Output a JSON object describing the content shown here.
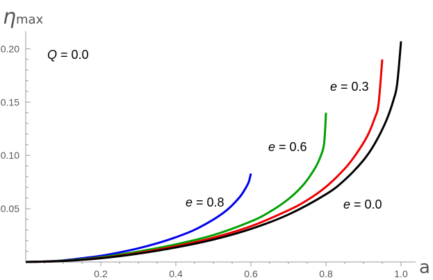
{
  "chart_data": {
    "type": "line",
    "title": "",
    "xlabel": "a",
    "ylabel": {
      "symbol": "η",
      "subscript": "max"
    },
    "xlim": [
      0.0,
      1.0
    ],
    "ylim": [
      0.0,
      0.21
    ],
    "x_ticks": [
      0.2,
      0.4,
      0.6,
      0.8,
      1.0
    ],
    "x_tick_labels": [
      "0.2",
      "0.4",
      "0.6",
      "0.8",
      "1.0"
    ],
    "y_ticks": [
      0.05,
      0.1,
      0.15,
      0.2
    ],
    "y_tick_labels": [
      "0.05",
      "0.10",
      "0.15",
      "0.20"
    ],
    "grid": false,
    "legend": "none",
    "annotations": [
      {
        "var": "Q",
        "eq": " = ",
        "val": "0.0"
      }
    ],
    "series": [
      {
        "label": {
          "var": "e",
          "eq": " = ",
          "val": "0.8"
        },
        "color": "#0000ee",
        "x": [
          0.0,
          0.05,
          0.1,
          0.15,
          0.2,
          0.25,
          0.3,
          0.35,
          0.4,
          0.45,
          0.5,
          0.53,
          0.55,
          0.57,
          0.58,
          0.59,
          0.595,
          0.6
        ],
        "y": [
          0.0,
          0.0005,
          0.0015,
          0.0035,
          0.0058,
          0.009,
          0.0128,
          0.0175,
          0.0232,
          0.0302,
          0.0398,
          0.047,
          0.0532,
          0.0608,
          0.0658,
          0.0718,
          0.0758,
          0.083
        ]
      },
      {
        "label": {
          "var": "e",
          "eq": " = ",
          "val": "0.6"
        },
        "color": "#00a000",
        "x": [
          0.0,
          0.05,
          0.1,
          0.15,
          0.2,
          0.3,
          0.4,
          0.5,
          0.6,
          0.65,
          0.7,
          0.74,
          0.77,
          0.785,
          0.795,
          0.8
        ],
        "y": [
          0.0,
          0.0004,
          0.0012,
          0.0026,
          0.0045,
          0.0098,
          0.0165,
          0.0252,
          0.038,
          0.047,
          0.059,
          0.0725,
          0.0875,
          0.0985,
          0.111,
          0.14
        ]
      },
      {
        "label": {
          "var": "e",
          "eq": " = ",
          "val": "0.3"
        },
        "color": "#ee0000",
        "x": [
          0.0,
          0.1,
          0.2,
          0.3,
          0.4,
          0.5,
          0.6,
          0.7,
          0.75,
          0.8,
          0.85,
          0.88,
          0.91,
          0.93,
          0.94,
          0.95
        ],
        "y": [
          0.0,
          0.001,
          0.0038,
          0.0085,
          0.0148,
          0.0228,
          0.0335,
          0.0485,
          0.058,
          0.0705,
          0.0875,
          0.101,
          0.118,
          0.135,
          0.148,
          0.19
        ]
      },
      {
        "label": {
          "var": "e",
          "eq": " = ",
          "val": "0.0"
        },
        "color": "#000000",
        "x": [
          0.0,
          0.1,
          0.2,
          0.3,
          0.4,
          0.5,
          0.6,
          0.7,
          0.8,
          0.85,
          0.9,
          0.93,
          0.96,
          0.98,
          0.99,
          1.0
        ],
        "y": [
          0.0,
          0.0009,
          0.0035,
          0.0078,
          0.0136,
          0.021,
          0.031,
          0.0445,
          0.0635,
          0.077,
          0.0955,
          0.111,
          0.132,
          0.152,
          0.168,
          0.207
        ]
      }
    ]
  }
}
